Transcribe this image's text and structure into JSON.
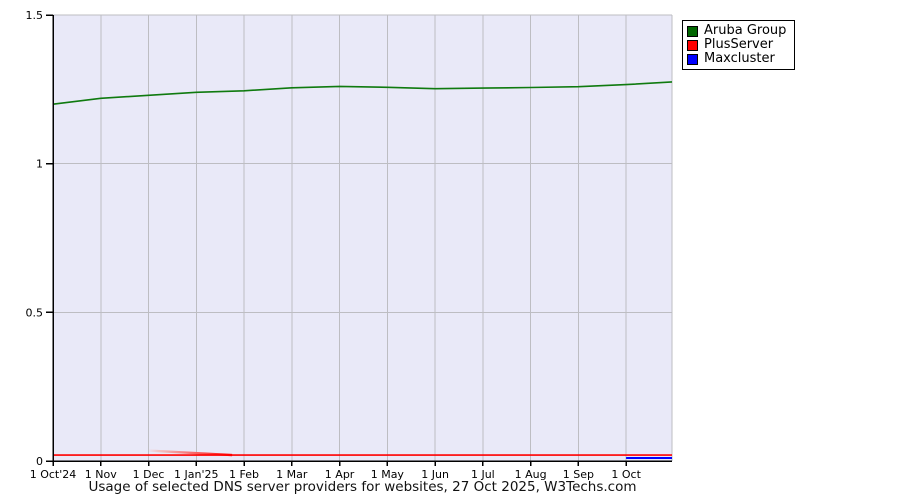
{
  "chart_data": {
    "type": "line",
    "title": "Usage of selected DNS server providers for websites, 27 Oct 2025, W3Techs.com",
    "x_axis": {
      "tick_labels": [
        "1 Oct'24",
        "1 Nov",
        "1 Dec",
        "1 Jan'25",
        "1 Feb",
        "1 Mar",
        "1 Apr",
        "1 May",
        "1 Jun",
        "1 Jul",
        "1 Aug",
        "1 Sep",
        "1 Oct"
      ],
      "months_total": 12.96
    },
    "y_axis": {
      "ticks": [
        0,
        0.5,
        1,
        1.5
      ],
      "tick_labels": [
        "0",
        "0.5",
        "1",
        "1.5"
      ],
      "range": [
        0,
        1.5
      ]
    },
    "grid": true,
    "series": [
      {
        "name": "Aruba Group",
        "color": "#0f7a0f",
        "width": 1.6,
        "x": [
          0,
          1,
          2,
          3,
          4,
          5,
          6,
          7,
          8,
          9,
          10,
          11,
          12,
          12.96
        ],
        "values": [
          1.2,
          1.22,
          1.23,
          1.24,
          1.245,
          1.255,
          1.26,
          1.257,
          1.252,
          1.254,
          1.256,
          1.259,
          1.266,
          1.275
        ]
      },
      {
        "name": "PlusServer",
        "color": "#ff0000",
        "width": 1.6,
        "x": [
          0,
          12.96
        ],
        "values": [
          0.02,
          0.02
        ]
      },
      {
        "name": "Maxcluster",
        "color": "#0000ff",
        "width": 2,
        "x": [
          12,
          12.96
        ],
        "values": [
          0.01,
          0.01
        ]
      }
    ],
    "annotations": {
      "fade_segment": {
        "x_from": 2.0,
        "x_to": 3.75,
        "value_from": 0.035,
        "value_to": 0.02,
        "color_from": "#f2c2c2",
        "color_to": "#ff0000"
      }
    },
    "legend": {
      "position": "top-right",
      "items": [
        {
          "label": "Aruba Group",
          "color": "#006600"
        },
        {
          "label": "PlusServer",
          "color": "#ff0000"
        },
        {
          "label": "Maxcluster",
          "color": "#0000ff"
        }
      ]
    },
    "colors": {
      "plot_background": "#e9e9f8",
      "grid": "#bdbdc2",
      "axis": "#000000",
      "tick_text": "#000000"
    }
  }
}
